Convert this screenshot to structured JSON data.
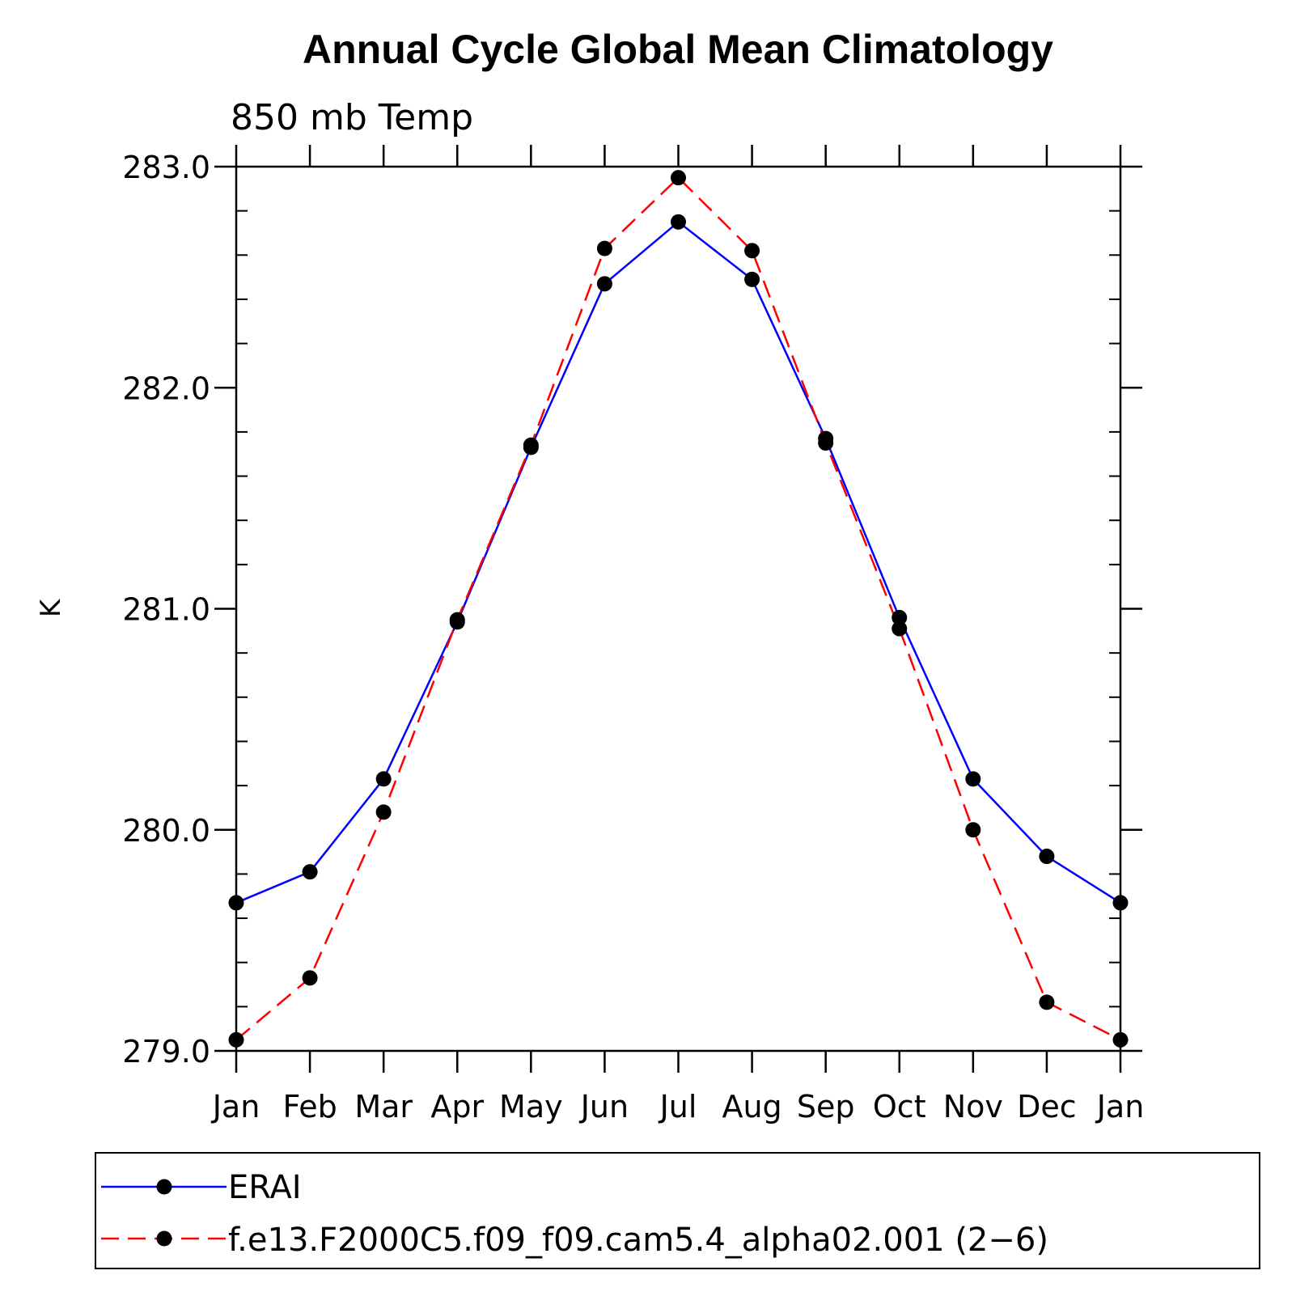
{
  "chart_data": {
    "type": "line",
    "title": "Annual Cycle Global Mean Climatology",
    "subtitle": "850 mb Temp",
    "xlabel": "",
    "ylabel": "K",
    "categories": [
      "Jan",
      "Feb",
      "Mar",
      "Apr",
      "May",
      "Jun",
      "Jul",
      "Aug",
      "Sep",
      "Oct",
      "Nov",
      "Dec",
      "Jan"
    ],
    "ylim": [
      279.0,
      283.0
    ],
    "yticks": [
      279.0,
      280.0,
      281.0,
      282.0,
      283.0
    ],
    "ytick_labels": [
      "279.0",
      "280.0",
      "281.0",
      "282.0",
      "283.0"
    ],
    "series": [
      {
        "name": "ERAI",
        "color": "#0000ff",
        "style": "solid",
        "values": [
          279.67,
          279.81,
          280.23,
          280.94,
          281.73,
          282.47,
          282.75,
          282.49,
          281.77,
          280.96,
          280.23,
          279.88,
          279.67
        ]
      },
      {
        "name": "f.e13.F2000C5.f09_f09.cam5.4_alpha02.001 (2−6)",
        "color": "#ff0000",
        "style": "dashed",
        "values": [
          279.05,
          279.33,
          280.08,
          280.95,
          281.74,
          282.63,
          282.95,
          282.62,
          281.75,
          280.91,
          280.0,
          279.22,
          279.05
        ]
      }
    ],
    "legend_position": "bottom",
    "marker_color": "#000000"
  }
}
